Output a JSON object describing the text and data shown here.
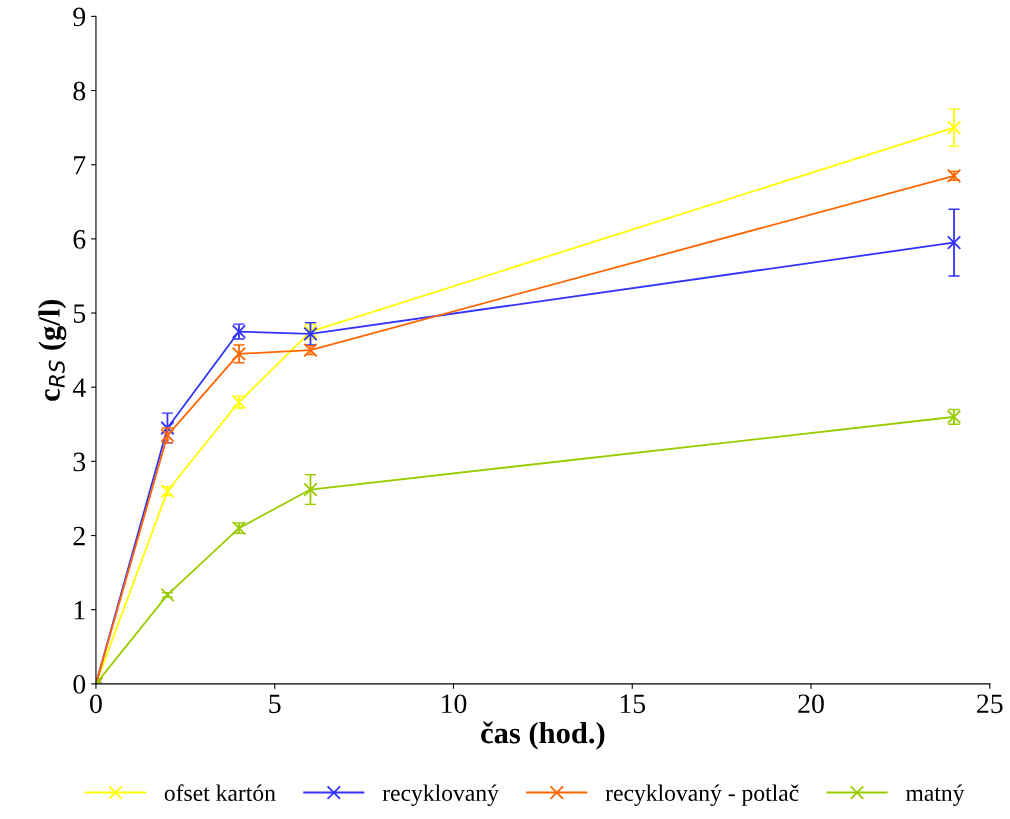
{
  "chart_data": {
    "type": "line",
    "xlabel": "čas (hod.)",
    "ylabel": "c$_{RS}$ (g/l)",
    "x": [
      0,
      2,
      4,
      6,
      24
    ],
    "xlim": [
      0,
      25
    ],
    "xticks": [
      0,
      5,
      10,
      15,
      20,
      25
    ],
    "ylim": [
      0,
      9
    ],
    "yticks": [
      0,
      1,
      2,
      3,
      4,
      5,
      6,
      7,
      8,
      9
    ],
    "grid": false,
    "legend": "bottom",
    "marker": "cross",
    "line_style": "solid",
    "series": [
      {
        "name": "ofset kartón",
        "color": "#ffff00",
        "values": [
          0,
          2.6,
          3.8,
          4.75,
          7.5
        ],
        "errors": [
          0.02,
          0.06,
          0.08,
          0.1,
          0.25
        ]
      },
      {
        "name": "recyklovaný",
        "color": "#3333ff",
        "values": [
          0,
          3.45,
          4.75,
          4.72,
          5.95
        ],
        "errors": [
          0.02,
          0.2,
          0.1,
          0.15,
          0.45
        ]
      },
      {
        "name": "recyklovaný - potlač",
        "color": "#ff6600",
        "values": [
          0,
          3.35,
          4.45,
          4.5,
          6.85
        ],
        "errors": [
          0.02,
          0.1,
          0.12,
          0.06,
          0.06
        ]
      },
      {
        "name": "matný",
        "color": "#99cc00",
        "values": [
          0,
          1.2,
          2.1,
          2.62,
          3.6
        ],
        "errors": [
          0.02,
          0.03,
          0.07,
          0.2,
          0.1
        ]
      }
    ]
  }
}
